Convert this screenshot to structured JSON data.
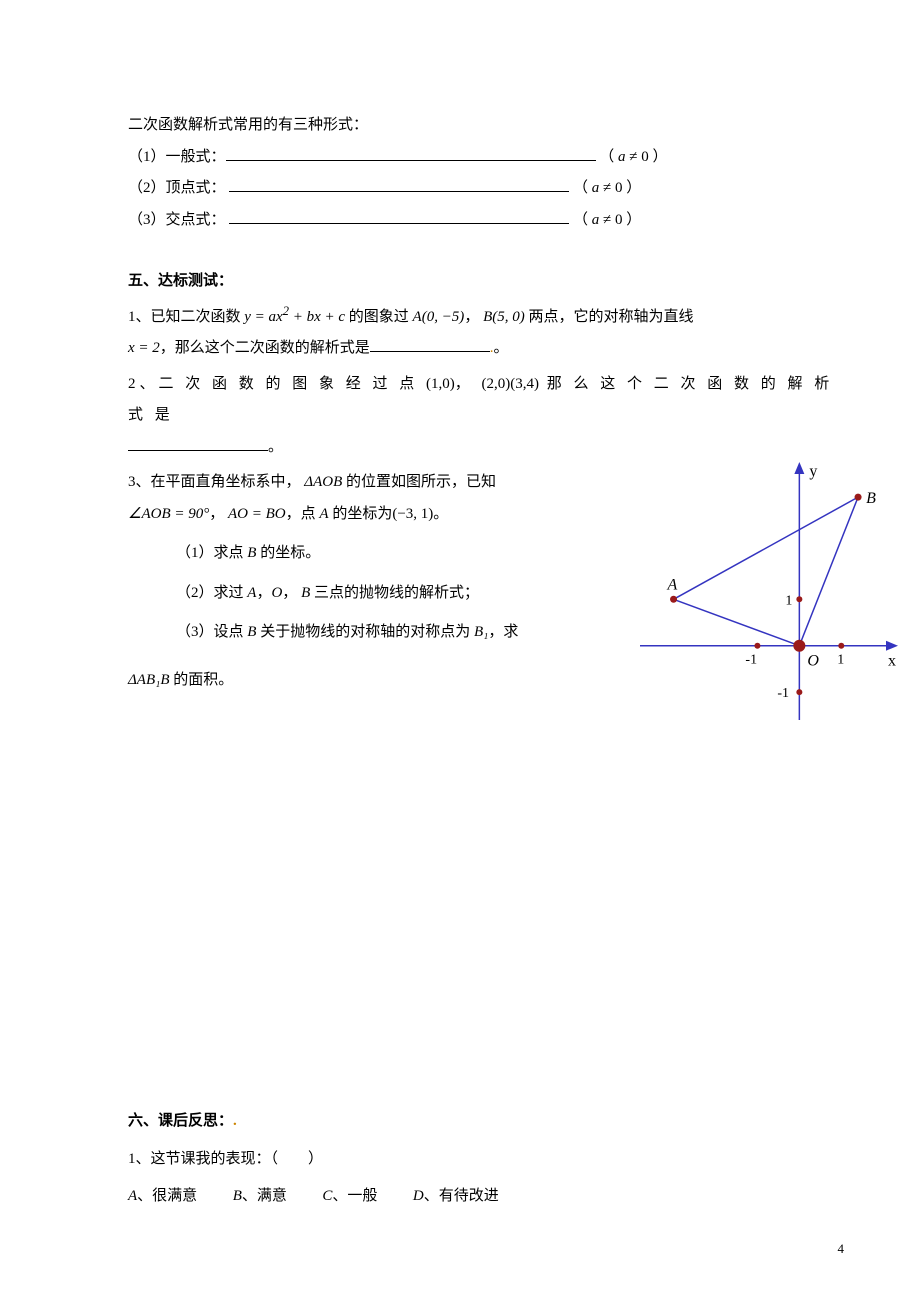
{
  "intro": {
    "heading": "二次函数解析式常用的有三种形式：",
    "items": [
      {
        "label": "（1）一般式：",
        "cond": "（ a ≠ 0 ）"
      },
      {
        "label": "（2）顶点式：",
        "cond": "（ a ≠ 0 ）"
      },
      {
        "label": "（3）交点式：",
        "cond": "（ a ≠ 0 ）"
      }
    ]
  },
  "section5": {
    "title": "五、达标测试：",
    "q1_pre": "1、已知二次函数 ",
    "q1_eq": "y = ax² + bx + c",
    "q1_mid": " 的图象过 ",
    "q1_A": "A(0, −5)",
    "q1_sep": "， ",
    "q1_B": "B(5, 0)",
    "q1_post": " 两点，它的对称轴为直线",
    "q1_line2_pre": "x = 2",
    "q1_line2_mid": "，那么这个二次函数的解析式是",
    "q1_line2_end": "。",
    "q2_pre": "2、二 次 函 数 的 图 象 经 过 点 ",
    "q2_p1": "(1,0)",
    "q2_sep": "， ",
    "q2_p2": "(2,0)",
    "q2_p3": "(3,4)",
    "q2_post": " 那 么 这 个 二 次 函 数 的 解 析 式 是",
    "q2_end": "。",
    "q3_line1_pre": "3、在平面直角坐标系中，  ",
    "q3_line1_tri": "ΔAOB",
    "q3_line1_post": " 的位置如图所示，已知",
    "q3_line2_a": "∠AOB = 90°",
    "q3_line2_sep": "， ",
    "q3_line2_b": "AO = BO",
    "q3_line2_mid": "，点 ",
    "q3_line2_Aital": "A",
    "q3_line2_c": " 的坐标为",
    "q3_line2_pt": "(−3, 1)",
    "q3_line2_end": "。",
    "q3_sub1_pre": "（1）求点 ",
    "q3_sub1_B": "B",
    "q3_sub1_post": " 的坐标。",
    "q3_sub2_pre": "（2）求过 ",
    "q3_sub2_A": "A",
    "q3_sub2_sep1": "，",
    "q3_sub2_O": "O",
    "q3_sub2_sep2": "， ",
    "q3_sub2_B": "B",
    "q3_sub2_post": " 三点的抛物线的解析式；",
    "q3_sub3_pre": "（3）设点 ",
    "q3_sub3_B": "B",
    "q3_sub3_mid": " 关于抛物线的对称轴的对称点为 ",
    "q3_sub3_B1": "B₁",
    "q3_sub3_post": "，求",
    "q3_last_tri": "ΔAB₁B",
    "q3_last_post": " 的面积。"
  },
  "figure": {
    "type": "coordinate-plot",
    "axis_color": "#3434c0",
    "line_color": "#3434c0",
    "point_color": "#9a1a1a",
    "bg": "#ffffff",
    "labels": {
      "y": "y",
      "x": "x",
      "A": "A",
      "B": "B",
      "O": "O",
      "one": "1",
      "negone_x": "-1",
      "negone_y": "-1",
      "pos1x": "1"
    },
    "x_range": [
      -3.8,
      2.4
    ],
    "y_range": [
      -1.6,
      4.0
    ],
    "points": {
      "A": [
        -3,
        1
      ],
      "O": [
        0,
        0
      ],
      "B": [
        1.4,
        3.2
      ],
      "axis_ticks_x": [
        -1,
        1
      ],
      "axis_ticks_y": [
        -1,
        1
      ]
    },
    "segments": [
      {
        "from": "A",
        "to": "O"
      },
      {
        "from": "O",
        "to": "B"
      },
      {
        "from": "A",
        "to": "B"
      }
    ],
    "label_font_size": 16,
    "tick_font_size": 14
  },
  "section6": {
    "title": "六、课后反思：",
    "q1": "1、这节课我的表现：（　　）",
    "opts": {
      "A_lbl": "A",
      "A_txt": "、很满意",
      "B_lbl": "B",
      "B_txt": "、满意",
      "C_lbl": "C",
      "C_txt": "、一般",
      "D_lbl": "D",
      "D_txt": "、有待改进"
    }
  },
  "page_number": "4"
}
